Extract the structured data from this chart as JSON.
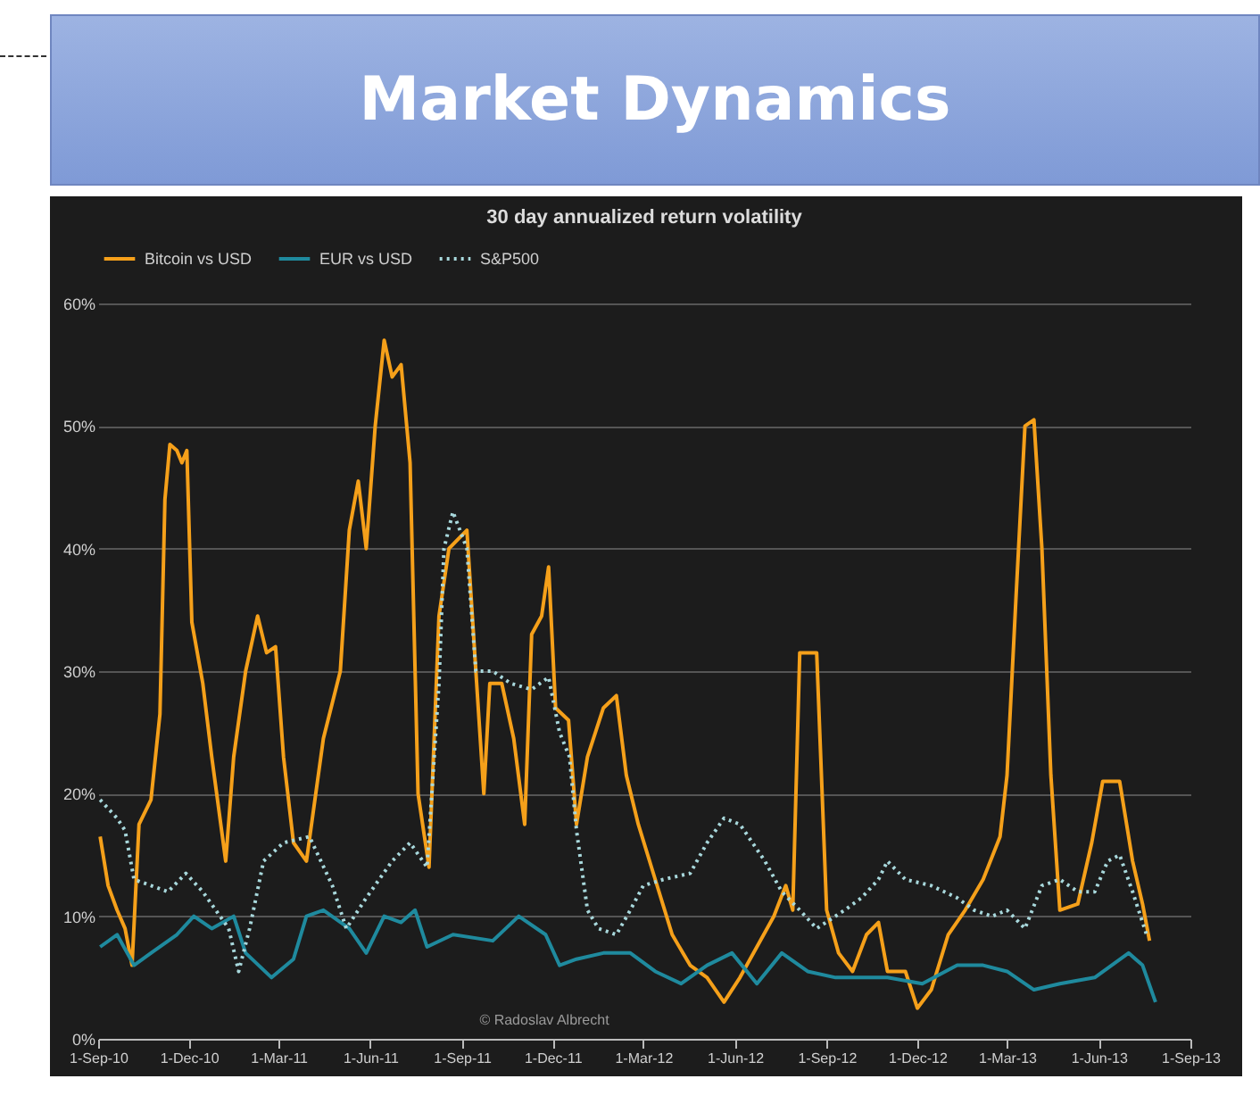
{
  "chart_data": {
    "type": "line",
    "title": "Market Dynamics",
    "subtitle": "30 day annualized return volatility",
    "annotations": [
      "© Radoslav Albrecht"
    ],
    "xlim": [
      "2010-09-01",
      "2013-09-01"
    ],
    "xticks": [
      {
        "value": "2010-09-01",
        "label": "1-Sep-10"
      },
      {
        "value": "2010-12-01",
        "label": "1-Dec-10"
      },
      {
        "value": "2011-03-01",
        "label": "1-Mar-11"
      },
      {
        "value": "2011-06-01",
        "label": "1-Jun-11"
      },
      {
        "value": "2011-09-01",
        "label": "1-Sep-11"
      },
      {
        "value": "2011-12-01",
        "label": "1-Dec-11"
      },
      {
        "value": "2012-03-01",
        "label": "1-Mar-12"
      },
      {
        "value": "2012-06-01",
        "label": "1-Jun-12"
      },
      {
        "value": "2012-09-01",
        "label": "1-Sep-12"
      },
      {
        "value": "2012-12-01",
        "label": "1-Dec-12"
      },
      {
        "value": "2013-03-01",
        "label": "1-Mar-13"
      },
      {
        "value": "2013-06-01",
        "label": "1-Jun-13"
      },
      {
        "value": "2013-09-01",
        "label": "1-Sep-13"
      }
    ],
    "ylim": [
      0,
      60
    ],
    "yticks": [
      {
        "value": 0,
        "label": "0%"
      },
      {
        "value": 10,
        "label": "10%"
      },
      {
        "value": 20,
        "label": "20%"
      },
      {
        "value": 30,
        "label": "30%"
      },
      {
        "value": 40,
        "label": "40%"
      },
      {
        "value": 50,
        "label": "50%"
      },
      {
        "value": 60,
        "label": "60%"
      }
    ],
    "grid": "y",
    "legend": "top",
    "series": [
      {
        "name": "Bitcoin vs USD",
        "color": "#f5a01a",
        "line_style": "solid",
        "x": [
          "2010-09-03",
          "2010-09-11",
          "2010-09-20",
          "2010-09-28",
          "2010-10-05",
          "2010-10-12",
          "2010-10-24",
          "2010-11-02",
          "2010-11-07",
          "2010-11-12",
          "2010-11-19",
          "2010-11-24",
          "2010-11-29",
          "2010-12-04",
          "2010-12-15",
          "2010-12-24",
          "2011-01-07",
          "2011-01-15",
          "2011-01-27",
          "2011-02-08",
          "2011-02-17",
          "2011-02-26",
          "2011-03-06",
          "2011-03-16",
          "2011-03-29",
          "2011-04-15",
          "2011-05-02",
          "2011-05-11",
          "2011-05-20",
          "2011-05-28",
          "2011-06-06",
          "2011-06-15",
          "2011-06-23",
          "2011-07-02",
          "2011-07-11",
          "2011-07-19",
          "2011-07-30",
          "2011-08-09",
          "2011-08-19",
          "2011-09-06",
          "2011-09-15",
          "2011-09-23",
          "2011-09-29",
          "2011-10-11",
          "2011-10-23",
          "2011-11-03",
          "2011-11-10",
          "2011-11-20",
          "2011-11-27",
          "2011-12-04",
          "2011-12-17",
          "2011-12-25",
          "2012-01-05",
          "2012-01-21",
          "2012-02-03",
          "2012-02-13",
          "2012-02-25",
          "2012-03-13",
          "2012-03-30",
          "2012-04-17",
          "2012-05-04",
          "2012-05-21",
          "2012-06-06",
          "2012-06-23",
          "2012-07-10",
          "2012-07-22",
          "2012-07-29",
          "2012-08-05",
          "2012-08-22",
          "2012-09-01",
          "2012-09-13",
          "2012-09-27",
          "2012-10-11",
          "2012-10-23",
          "2012-11-01",
          "2012-11-19",
          "2012-12-01",
          "2012-12-15",
          "2013-01-01",
          "2013-01-18",
          "2013-02-05",
          "2013-02-22",
          "2013-03-01",
          "2013-03-10",
          "2013-03-19",
          "2013-03-28",
          "2013-04-05",
          "2013-04-14",
          "2013-04-23",
          "2013-05-11",
          "2013-05-25",
          "2013-06-05",
          "2013-06-22",
          "2013-07-05",
          "2013-07-15",
          "2013-07-22"
        ],
        "values": [
          16.5,
          12.5,
          10.5,
          9,
          6,
          17.5,
          19.5,
          26.5,
          44,
          48.5,
          48,
          47,
          48,
          34,
          29,
          23,
          14.5,
          23,
          30,
          34.5,
          31.5,
          32,
          23,
          16,
          14.5,
          24.5,
          30,
          41.5,
          45.5,
          40,
          50,
          57,
          54,
          55,
          47,
          20,
          14,
          34.5,
          40,
          41.5,
          30,
          20,
          29,
          29,
          24.5,
          17.5,
          33,
          34.5,
          38.5,
          27,
          26,
          17.5,
          23,
          27,
          28,
          21.5,
          17.5,
          13,
          8.5,
          6,
          5,
          3,
          5,
          7.5,
          10,
          12.5,
          10.5,
          31.5,
          31.5,
          10.5,
          7,
          5.5,
          8.5,
          9.5,
          5.5,
          5.5,
          2.5,
          4,
          8.5,
          10.5,
          13,
          16.5,
          21.5,
          36,
          50,
          50.5,
          40,
          21.5,
          10.5,
          11,
          16,
          21,
          21,
          14.5,
          11,
          8
        ]
      },
      {
        "name": "EUR vs USD",
        "color": "#1f8a9e",
        "line_style": "solid",
        "x": [
          "2010-09-03",
          "2010-09-20",
          "2010-10-07",
          "2010-10-24",
          "2010-11-19",
          "2010-12-06",
          "2010-12-24",
          "2011-01-15",
          "2011-01-27",
          "2011-02-22",
          "2011-03-16",
          "2011-03-29",
          "2011-04-15",
          "2011-05-11",
          "2011-05-28",
          "2011-06-15",
          "2011-07-02",
          "2011-07-16",
          "2011-07-28",
          "2011-08-23",
          "2011-10-02",
          "2011-10-28",
          "2011-11-24",
          "2011-12-08",
          "2011-12-25",
          "2012-01-21",
          "2012-02-17",
          "2012-03-13",
          "2012-04-08",
          "2012-05-04",
          "2012-05-29",
          "2012-06-23",
          "2012-07-18",
          "2012-08-13",
          "2012-09-10",
          "2012-10-06",
          "2012-11-01",
          "2012-12-06",
          "2013-01-10",
          "2013-02-05",
          "2013-03-01",
          "2013-03-28",
          "2013-04-23",
          "2013-05-28",
          "2013-07-01",
          "2013-07-15",
          "2013-07-28"
        ],
        "values": [
          7.5,
          8.5,
          6,
          7,
          8.5,
          10,
          9,
          10,
          7,
          5,
          6.5,
          10,
          10.5,
          9,
          7,
          10,
          9.5,
          10.5,
          7.5,
          8.5,
          8,
          10,
          8.5,
          6,
          6.5,
          7,
          7,
          5.5,
          4.5,
          6,
          7,
          4.5,
          7,
          5.5,
          5,
          5,
          5,
          4.5,
          6,
          6,
          5.5,
          4,
          4.5,
          5,
          7,
          6,
          3
        ]
      },
      {
        "name": "S&P500",
        "color": "#a8d8dc",
        "line_style": "dotted",
        "x": [
          "2010-09-03",
          "2010-09-20",
          "2010-09-28",
          "2010-10-07",
          "2010-10-24",
          "2010-11-10",
          "2010-11-28",
          "2010-12-15",
          "2011-01-10",
          "2011-01-20",
          "2011-01-31",
          "2011-02-14",
          "2011-03-06",
          "2011-04-01",
          "2011-04-24",
          "2011-05-08",
          "2011-05-28",
          "2011-06-23",
          "2011-07-11",
          "2011-07-28",
          "2011-08-09",
          "2011-08-14",
          "2011-08-23",
          "2011-09-06",
          "2011-09-15",
          "2011-10-02",
          "2011-10-20",
          "2011-11-10",
          "2011-11-27",
          "2011-12-08",
          "2011-12-18",
          "2011-12-25",
          "2012-01-05",
          "2012-01-16",
          "2012-02-03",
          "2012-02-17",
          "2012-03-01",
          "2012-03-21",
          "2012-04-17",
          "2012-05-04",
          "2012-05-21",
          "2012-06-06",
          "2012-07-01",
          "2012-07-18",
          "2012-08-05",
          "2012-08-22",
          "2012-09-19",
          "2012-10-06",
          "2012-10-23",
          "2012-11-01",
          "2012-11-19",
          "2012-12-15",
          "2013-01-10",
          "2013-01-27",
          "2013-02-14",
          "2013-03-01",
          "2013-03-19",
          "2013-04-05",
          "2013-04-23",
          "2013-05-11",
          "2013-05-28",
          "2013-06-10",
          "2013-06-22",
          "2013-07-05",
          "2013-07-19"
        ],
        "values": [
          19.5,
          18,
          17,
          13,
          12.5,
          12,
          13.5,
          12,
          9,
          5.5,
          9,
          14.5,
          16,
          16.5,
          12.5,
          9,
          11.5,
          14.5,
          16,
          14,
          29,
          40,
          43,
          40,
          30,
          30,
          29,
          28.5,
          29.5,
          25,
          23,
          17,
          10.5,
          9,
          8.5,
          10.5,
          12.5,
          13,
          13.5,
          16,
          18,
          17.5,
          14.5,
          12,
          10.5,
          9,
          10.5,
          11.5,
          13,
          14.5,
          13,
          12.5,
          11.5,
          10.5,
          10,
          10.5,
          9,
          12.5,
          13,
          12,
          12,
          14.5,
          15,
          12,
          8.5
        ]
      }
    ]
  }
}
